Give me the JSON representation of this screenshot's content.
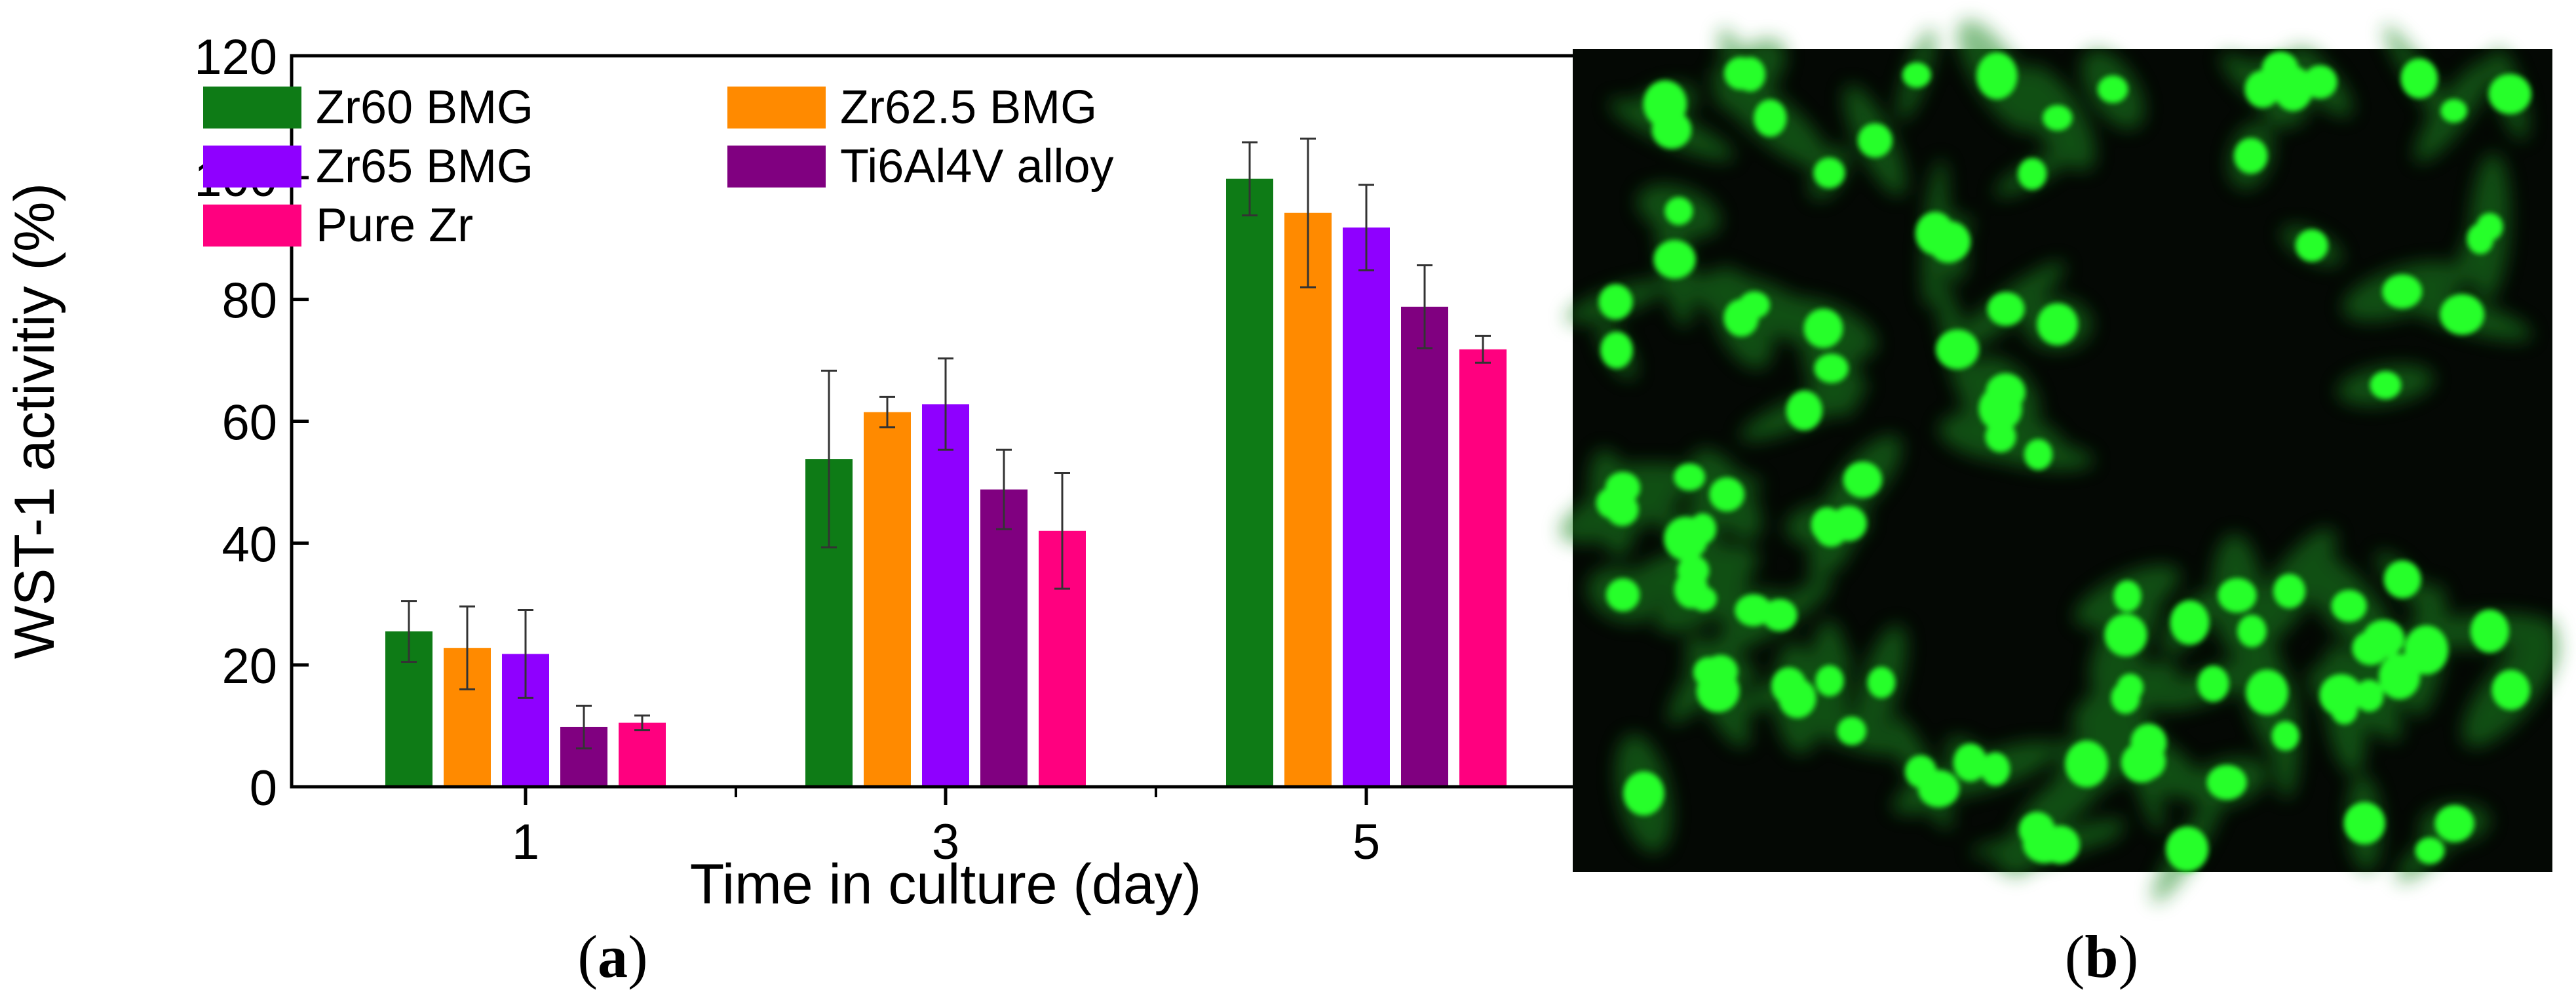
{
  "chart_data": {
    "type": "bar",
    "xlabel": "Time in culture (day)",
    "ylabel": "WST-1 activitiy (%)",
    "categories": [
      "1",
      "3",
      "5"
    ],
    "ylim": [
      0,
      120
    ],
    "yticks": [
      0,
      20,
      40,
      60,
      80,
      100,
      120
    ],
    "legend_position": "top-left",
    "grid": false,
    "series": [
      {
        "name": "Zr60 BMG",
        "color": "#0e7b16",
        "values": [
          25.5,
          53.8,
          99.8
        ],
        "errors": [
          5.0,
          14.5,
          6.0
        ]
      },
      {
        "name": "Zr62.5 BMG",
        "color": "#ff8a00",
        "values": [
          22.8,
          61.5,
          94.2
        ],
        "errors": [
          6.8,
          2.5,
          12.2
        ]
      },
      {
        "name": "Zr65 BMG",
        "color": "#8f00ff",
        "values": [
          21.8,
          62.8,
          91.8
        ],
        "errors": [
          7.2,
          7.5,
          7.0
        ]
      },
      {
        "name": "Ti6Al4V alloy",
        "color": "#800080",
        "values": [
          9.8,
          48.8,
          78.8
        ],
        "errors": [
          3.5,
          6.5,
          6.8
        ]
      },
      {
        "name": "Pure Zr",
        "color": "#ff007f",
        "values": [
          10.5,
          42.0,
          71.8
        ],
        "errors": [
          1.2,
          9.5,
          2.2
        ]
      }
    ]
  },
  "panels": {
    "a_label": "a",
    "b_label": "b",
    "b_image": "fluorescence-micrograph-cells"
  }
}
